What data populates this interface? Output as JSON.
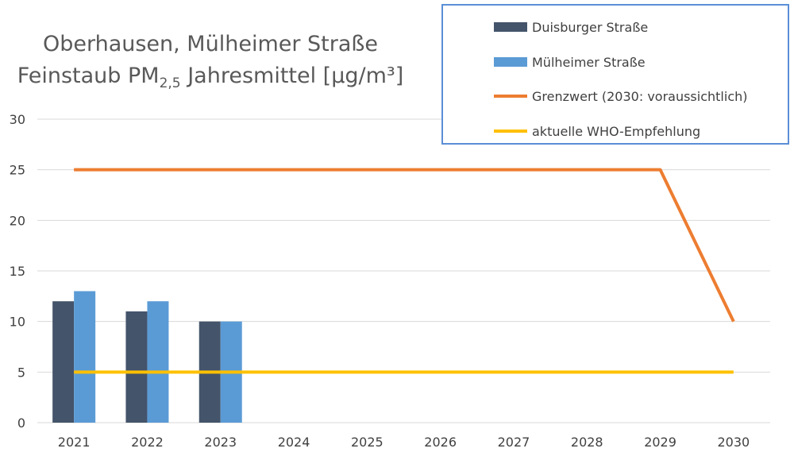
{
  "title": {
    "line1": "Oberhausen, Mülheimer Straße",
    "line2_prefix": "Feinstaub PM",
    "line2_sub": "2,5",
    "line2_suffix": " Jahresmittel [µg/m³]"
  },
  "colors": {
    "duisburger": "#44546A",
    "muelheimer": "#5B9BD5",
    "grenzwert": "#ED7D31",
    "who": "#FFC000",
    "grid": "#D9D9D9",
    "legend_border": "#5B8FD6"
  },
  "chart_data": {
    "type": "bar",
    "categories": [
      "2021",
      "2022",
      "2023",
      "2024",
      "2025",
      "2026",
      "2027",
      "2028",
      "2029",
      "2030"
    ],
    "ylim": [
      0,
      30
    ],
    "yticks": [
      0,
      5,
      10,
      15,
      20,
      25,
      30
    ],
    "grid": true,
    "legend_position": "top-right",
    "series": [
      {
        "name": "Duisburger Straße",
        "kind": "bar",
        "values": [
          12,
          11,
          10,
          null,
          null,
          null,
          null,
          null,
          null,
          null
        ]
      },
      {
        "name": "Mülheimer Straße",
        "kind": "bar",
        "values": [
          13,
          12,
          10,
          null,
          null,
          null,
          null,
          null,
          null,
          null
        ]
      },
      {
        "name": "Grenzwert (2030: voraussichtlich)",
        "kind": "line",
        "values": [
          25,
          25,
          25,
          25,
          25,
          25,
          25,
          25,
          25,
          10
        ]
      },
      {
        "name": "aktuelle WHO-Empfehlung",
        "kind": "line",
        "values": [
          5,
          5,
          5,
          5,
          5,
          5,
          5,
          5,
          5,
          5
        ]
      }
    ]
  }
}
